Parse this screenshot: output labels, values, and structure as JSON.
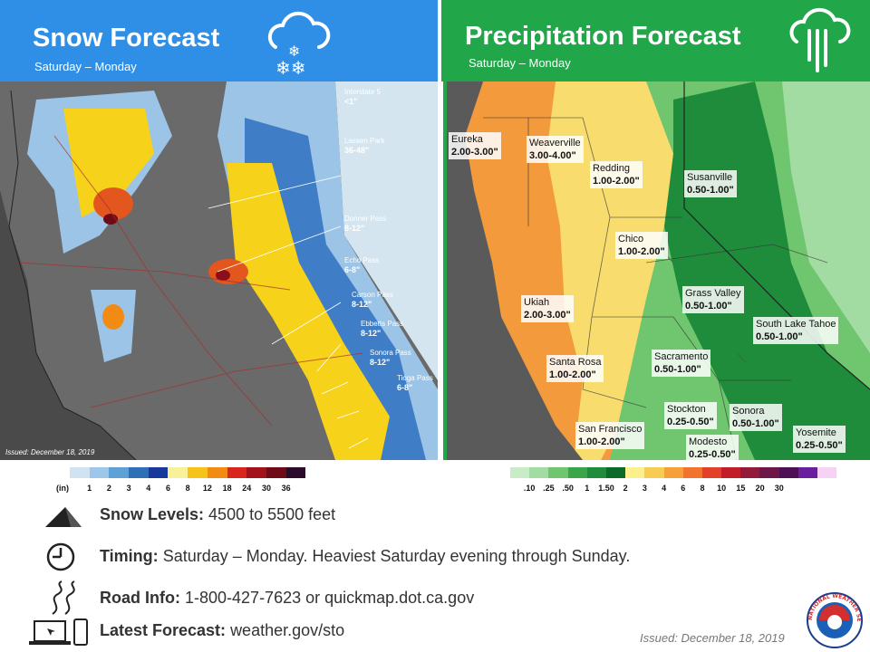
{
  "snow": {
    "title": "Snow Forecast",
    "subtitle": "Saturday – Monday",
    "issued": "Issued: December 18, 2019",
    "labels": [
      {
        "name": "Interstate 5",
        "value": "<1\""
      },
      {
        "name": "Lassen Park",
        "value": "36-48\""
      },
      {
        "name": "Donner Pass",
        "value": "8-12\""
      },
      {
        "name": "Echo Pass",
        "value": "6-8\""
      },
      {
        "name": "Carson Pass",
        "value": "8-12\""
      },
      {
        "name": "Ebbetts Pass",
        "value": "8-12\""
      },
      {
        "name": "Sonora Pass",
        "value": "8-12\""
      },
      {
        "name": "Tioga Pass",
        "value": "6-8\""
      }
    ],
    "legend": {
      "unit": "(in)",
      "ticks": [
        "1",
        "2",
        "3",
        "4",
        "6",
        "8",
        "12",
        "18",
        "24",
        "30",
        "36"
      ],
      "colors": [
        "#cfe3f3",
        "#9ec6e8",
        "#5fa0d6",
        "#2e6fb8",
        "#16399a",
        "#f8f19a",
        "#f7c21a",
        "#f28b14",
        "#d9251c",
        "#a3121a",
        "#6e0b16",
        "#2b0b2a"
      ]
    }
  },
  "precip": {
    "title": "Precipitation Forecast",
    "subtitle": "Saturday – Monday",
    "labels": [
      {
        "name": "Eureka",
        "value": "2.00-3.00\""
      },
      {
        "name": "Weaverville",
        "value": "3.00-4.00\""
      },
      {
        "name": "Redding",
        "value": "1.00-2.00\""
      },
      {
        "name": "Susanville",
        "value": "0.50-1.00\""
      },
      {
        "name": "Chico",
        "value": "1.00-2.00\""
      },
      {
        "name": "Ukiah",
        "value": "2.00-3.00\""
      },
      {
        "name": "Grass Valley",
        "value": "0.50-1.00\""
      },
      {
        "name": "South Lake Tahoe",
        "value": "0.50-1.00\""
      },
      {
        "name": "Santa Rosa",
        "value": "1.00-2.00\""
      },
      {
        "name": "Sacramento",
        "value": "0.50-1.00\""
      },
      {
        "name": "Stockton",
        "value": "0.25-0.50\""
      },
      {
        "name": "Sonora",
        "value": "0.50-1.00\""
      },
      {
        "name": "San Francisco",
        "value": "1.00-2.00\""
      },
      {
        "name": "Modesto",
        "value": "0.25-0.50\""
      },
      {
        "name": "Yosemite",
        "value": "0.25-0.50\""
      }
    ],
    "legend": {
      "ticks": [
        ".10",
        ".25",
        ".50",
        "1",
        "1.50",
        "2",
        "3",
        "4",
        "6",
        "8",
        "10",
        "15",
        "20",
        "30"
      ],
      "colors": [
        "#c8ecc8",
        "#a3dca3",
        "#6fc66f",
        "#3aa54a",
        "#1e8c3a",
        "#0b6a2a",
        "#fbf08c",
        "#f8cc52",
        "#f5a03a",
        "#f2732e",
        "#e3402a",
        "#c21e2a",
        "#941a3c",
        "#6e1646",
        "#4e1055",
        "#6a1ea0",
        "#f6d3f4"
      ]
    }
  },
  "info": [
    {
      "key": "snow_levels",
      "label": "Snow Levels:",
      "text": "4500 to 5500 feet"
    },
    {
      "key": "timing",
      "label": "Timing:",
      "text": "Saturday – Monday. Heaviest Saturday evening through Sunday."
    },
    {
      "key": "road_info",
      "label": "Road Info:",
      "text": "1-800-427-7623  or quickmap.dot.ca.gov"
    },
    {
      "key": "latest_forecast",
      "label": "Latest Forecast:",
      "text": "weather.gov/sto"
    }
  ],
  "issued_bottom": "Issued: December 18, 2019",
  "logo_text": "NATIONAL WEATHER SERVICE"
}
